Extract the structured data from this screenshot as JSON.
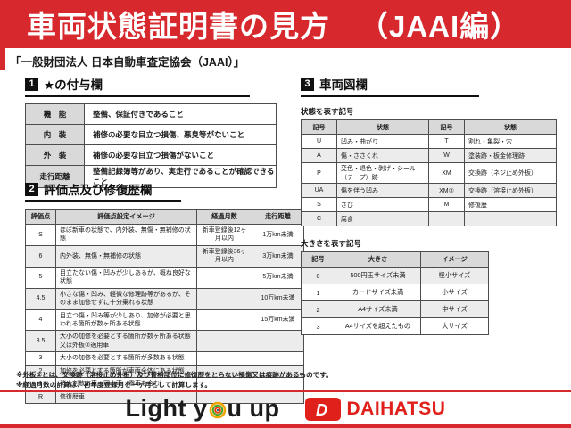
{
  "header": {
    "title": "車両状態証明書の見方",
    "edition": "（JAAI編）",
    "subtitle": "「一般財団法人 日本自動車査定協会（JAAI）」"
  },
  "section1": {
    "number": "1",
    "title": "★の付与欄",
    "rows": [
      [
        "機　能",
        "整備、保証付きであること"
      ],
      [
        "内　装",
        "補修の必要な目立つ損傷、悪臭等がないこと"
      ],
      [
        "外　装",
        "補修の必要な目立つ損傷がないこと"
      ],
      [
        "走行距離",
        "整備記録簿等があり、実走行であることが確認できること"
      ]
    ]
  },
  "section2": {
    "number": "2",
    "title": "評価点及び修復歴欄",
    "headers": [
      "評価点",
      "評価点設定イメージ",
      "経過月数",
      "走行距離"
    ],
    "rows": [
      [
        "S",
        "ほぼ新車の状態で、内外装、無傷・無補修の状態",
        "新車登録後12ヶ月以内",
        "1万km未満"
      ],
      [
        "6",
        "内外装、無傷・無補修の状態",
        "新車登録後36ヶ月以内",
        "3万km未満"
      ],
      [
        "5",
        "目立たない傷・凹みが少しあるが、概ね良好な状態",
        "",
        "5万km未満"
      ],
      [
        "4.5",
        "小さな傷・凹み、軽微な修理跡等があるが、そのまま加修せずに十分乗れる状態",
        "",
        "10万km未満"
      ],
      [
        "4",
        "目立つ傷・凹み等が少しあり、加修が必要と思われる箇所が数ヶ所ある状態",
        "",
        "15万km未満"
      ],
      [
        "3.5",
        "大小の加修を必要とする箇所が数ヶ所ある状態又は外板②適用車",
        "",
        ""
      ],
      [
        "3",
        "大小の加修を必要とする箇所が多数ある状態",
        "",
        ""
      ],
      [
        "2",
        "加修を必要とする箇所が車両全体にある状態",
        "",
        ""
      ],
      [
        "1",
        "消火剤散布車・冠水車（雹車を含む）",
        "",
        ""
      ],
      [
        "R",
        "修復歴車",
        "",
        ""
      ]
    ],
    "notes": [
      "※外板②とは、交換跡（溶接止め外板）及び骨格部位に修復歴をとらない損傷又は痕跡があるものです。",
      "※経過月数の計算は、初年度登録月を一ヶ月として計算します。"
    ]
  },
  "section3": {
    "number": "3",
    "title": "車両図欄",
    "condition": {
      "label": "状態を表す記号",
      "headers": [
        "記号",
        "状態",
        "記号",
        "状態"
      ],
      "rows": [
        [
          "U",
          "凹み・曲がり",
          "T",
          "割れ・亀裂・穴"
        ],
        [
          "A",
          "傷・ささくれ",
          "W",
          "塗装跡・板金修理跡"
        ],
        [
          "P",
          "変色・退色・剥げ・シール（テープ）跡",
          "XM",
          "交換跡（ネジ止め外板）"
        ],
        [
          "UA",
          "傷を伴う凹み",
          "XM②",
          "交換跡（溶接止め外板）"
        ],
        [
          "S",
          "さび",
          "M",
          "修復歴"
        ],
        [
          "C",
          "腐食",
          "",
          ""
        ]
      ]
    },
    "size": {
      "label": "大きさを表す記号",
      "headers": [
        "記号",
        "大きさ",
        "イメージ"
      ],
      "rows": [
        [
          "0",
          "500円玉サイズ未満",
          "極小サイズ"
        ],
        [
          "1",
          "カードサイズ未満",
          "小サイズ"
        ],
        [
          "2",
          "A4サイズ未満",
          "中サイズ"
        ],
        [
          "3",
          "A4サイズを超えたもの",
          "大サイズ"
        ]
      ]
    }
  },
  "footer": {
    "slogan_prefix": "Light y",
    "slogan_suffix": "u up",
    "brand": "DAIHATSU",
    "dmark": "D"
  },
  "colors": {
    "banner_red": "#d7282d",
    "brand_red": "#e0201b",
    "table_header_gray": "#d9d9d9",
    "stripe_gray": "#ececec"
  }
}
